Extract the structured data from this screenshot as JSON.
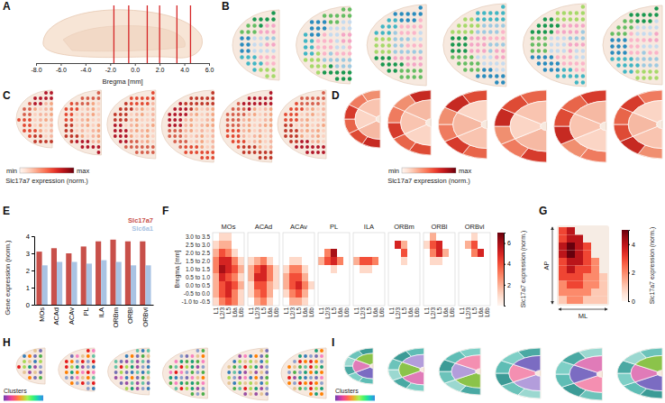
{
  "chart_data": [
    {
      "panel": "A",
      "type": "vlines",
      "xlabel": "Bregma [mm]",
      "xlim": [
        -8,
        6
      ],
      "xticks": [
        {
          "value": -8,
          "label": "-8.0"
        },
        {
          "value": -6,
          "label": "-6.0"
        },
        {
          "value": -4,
          "label": "-4.0"
        },
        {
          "value": -2,
          "label": "-2.0"
        },
        {
          "value": 0,
          "label": "0.0"
        },
        {
          "value": 2,
          "label": "2.0"
        },
        {
          "value": 4,
          "label": "4.0"
        },
        {
          "value": 6,
          "label": "6.0"
        }
      ],
      "x": [
        -1.7,
        -0.5,
        1.0,
        2.0,
        3.4,
        4.5
      ],
      "color": "#d62728"
    },
    {
      "panel": "B",
      "type": "image"
    },
    {
      "panel": "C",
      "type": "image",
      "colorbar": {
        "title": "Slc17a7 expression (norm.)",
        "labels": [
          "min",
          "max"
        ]
      }
    },
    {
      "panel": "D",
      "type": "image",
      "colorbar": {
        "title": "Slc17a7 expression (norm.)",
        "labels": [
          "min",
          "max"
        ]
      }
    },
    {
      "panel": "E",
      "type": "bar",
      "ylabel": "Gene expression (norm.)",
      "categories": [
        "MOs",
        "ACAd",
        "ACAv",
        "PL",
        "ILA",
        "ORBm",
        "ORBl",
        "ORBvl"
      ],
      "series": [
        {
          "name": "Slc17a7",
          "color": "#c8504a",
          "values": [
            3.1,
            3.3,
            3.0,
            3.4,
            3.7,
            3.8,
            3.7,
            3.7
          ]
        },
        {
          "name": "Slc6a1",
          "color": "#a9c3e3",
          "values": [
            2.3,
            2.5,
            2.5,
            2.4,
            2.6,
            2.5,
            2.3,
            2.3
          ]
        }
      ],
      "ylim": [
        0,
        4
      ],
      "yticks": [
        0,
        1,
        2,
        3,
        4
      ],
      "legend": "top-right"
    },
    {
      "panel": "F",
      "type": "heatmap",
      "ylabel": "Bregma [mm]",
      "rows": [
        "3.0 to 3.5",
        "2.5 to 3.0",
        "2.0 to 2.5",
        "1.5 to 2.0",
        "1.0 to 1.5",
        "0.5 to 1.0",
        "0.0 to 0.5",
        "-0.5 to 0.0",
        "-1.0 to -0.5"
      ],
      "columns": [
        "L1",
        "L2/3",
        "L5",
        "L6a",
        "L6b"
      ],
      "panels": [
        {
          "title": "MOs",
          "values": [
            [
              null,
              1,
              1,
              null,
              null
            ],
            [
              1,
              2,
              2,
              null,
              null
            ],
            [
              2,
              4,
              3,
              1,
              null
            ],
            [
              3,
              5,
              5,
              3,
              1
            ],
            [
              3,
              6,
              5,
              4,
              2
            ],
            [
              2,
              5,
              4,
              3,
              1
            ],
            [
              2,
              4,
              5,
              4,
              2
            ],
            [
              2,
              4,
              5,
              3,
              1
            ],
            [
              1,
              3,
              4,
              3,
              1
            ]
          ]
        },
        {
          "title": "ACAd",
          "values": [
            [
              null,
              null,
              null,
              null,
              null
            ],
            [
              null,
              null,
              null,
              null,
              null
            ],
            [
              null,
              null,
              null,
              null,
              null
            ],
            [
              1,
              2,
              3,
              1,
              null
            ],
            [
              2,
              4,
              5,
              3,
              1
            ],
            [
              2,
              5,
              5,
              3,
              1
            ],
            [
              1,
              4,
              4,
              2,
              1
            ],
            [
              1,
              3,
              4,
              2,
              null
            ],
            [
              null,
              2,
              3,
              1,
              null
            ]
          ]
        },
        {
          "title": "ACAv",
          "values": [
            [
              null,
              null,
              null,
              null,
              null
            ],
            [
              null,
              null,
              null,
              null,
              null
            ],
            [
              null,
              null,
              null,
              null,
              null
            ],
            [
              null,
              1,
              1,
              null,
              null
            ],
            [
              1,
              3,
              3,
              1,
              null
            ],
            [
              2,
              4,
              4,
              2,
              null
            ],
            [
              2,
              4,
              5,
              3,
              1
            ],
            [
              1,
              3,
              4,
              2,
              null
            ],
            [
              null,
              2,
              2,
              1,
              null
            ]
          ]
        },
        {
          "title": "PL",
          "values": [
            [
              null,
              null,
              null,
              null,
              null
            ],
            [
              null,
              null,
              null,
              null,
              null
            ],
            [
              null,
              3,
              6,
              null,
              null
            ],
            [
              2,
              4,
              5,
              3,
              null
            ],
            [
              null,
              null,
              1,
              null,
              null
            ],
            [
              null,
              null,
              null,
              null,
              null
            ],
            [
              null,
              null,
              null,
              null,
              null
            ],
            [
              null,
              null,
              null,
              null,
              null
            ],
            [
              null,
              null,
              null,
              null,
              null
            ]
          ]
        },
        {
          "title": "ILA",
          "values": [
            [
              null,
              null,
              null,
              null,
              null
            ],
            [
              null,
              null,
              null,
              null,
              null
            ],
            [
              null,
              null,
              null,
              null,
              null
            ],
            [
              2,
              4,
              4,
              3,
              null
            ],
            [
              null,
              1,
              1,
              null,
              null
            ],
            [
              null,
              null,
              null,
              null,
              null
            ],
            [
              null,
              null,
              null,
              null,
              null
            ],
            [
              null,
              null,
              null,
              null,
              null
            ],
            [
              null,
              null,
              null,
              null,
              null
            ]
          ]
        },
        {
          "title": "ORBm",
          "values": [
            [
              null,
              null,
              null,
              null,
              null
            ],
            [
              null,
              5,
              2,
              null,
              null
            ],
            [
              null,
              null,
              4,
              null,
              null
            ],
            [
              null,
              null,
              1,
              null,
              null
            ],
            [
              null,
              null,
              null,
              null,
              null
            ],
            [
              null,
              null,
              null,
              null,
              null
            ],
            [
              null,
              null,
              null,
              null,
              null
            ],
            [
              null,
              null,
              null,
              null,
              null
            ],
            [
              null,
              null,
              null,
              null,
              null
            ]
          ]
        },
        {
          "title": "ORBl",
          "values": [
            [
              null,
              2,
              null,
              null,
              null
            ],
            [
              1,
              4,
              5,
              null,
              null
            ],
            [
              null,
              3,
              5,
              2,
              null
            ],
            [
              null,
              1,
              1,
              null,
              null
            ],
            [
              null,
              null,
              null,
              null,
              null
            ],
            [
              null,
              null,
              null,
              null,
              null
            ],
            [
              null,
              null,
              null,
              null,
              null
            ],
            [
              null,
              null,
              null,
              null,
              null
            ],
            [
              null,
              null,
              null,
              null,
              null
            ]
          ]
        },
        {
          "title": "ORBvl",
          "values": [
            [
              null,
              null,
              1,
              null,
              null
            ],
            [
              null,
              2,
              4,
              null,
              null
            ],
            [
              null,
              null,
              3,
              5,
              null
            ],
            [
              null,
              null,
              null,
              null,
              null
            ],
            [
              null,
              null,
              null,
              null,
              null
            ],
            [
              null,
              null,
              null,
              null,
              null
            ],
            [
              null,
              null,
              null,
              null,
              null
            ],
            [
              null,
              null,
              null,
              null,
              null
            ],
            [
              null,
              null,
              null,
              null,
              null
            ]
          ]
        }
      ],
      "colorbar": {
        "title": "Slc17a7 expression (norm.)",
        "lim": [
          0,
          7
        ],
        "ticks": [
          2,
          4,
          6
        ]
      }
    },
    {
      "panel": "G",
      "type": "heatmap",
      "xlabel": "ML",
      "ylabel": "AP",
      "values": [
        [
          3,
          4,
          null,
          null,
          null,
          null
        ],
        [
          3,
          4,
          4,
          null,
          null,
          null
        ],
        [
          4,
          5,
          4,
          3,
          null,
          null
        ],
        [
          4,
          5,
          4,
          3,
          null,
          null
        ],
        [
          3,
          4,
          4,
          3,
          2,
          null
        ],
        [
          3,
          4,
          3,
          3,
          2,
          null
        ],
        [
          3,
          3,
          3,
          2,
          2,
          1
        ],
        [
          2,
          3,
          3,
          2,
          2,
          1
        ],
        [
          2,
          2,
          2,
          2,
          1,
          1
        ],
        [
          1,
          2,
          2,
          1,
          1,
          1
        ]
      ],
      "colorbar": {
        "title": "Slc17a7 expression (norm.)",
        "lim": [
          0,
          5
        ],
        "ticks": [
          0,
          2,
          4
        ]
      }
    },
    {
      "panel": "H",
      "type": "image",
      "colorbar": {
        "title": "Clusters"
      }
    },
    {
      "panel": "I",
      "type": "image",
      "colorbar": {
        "title": "Clusters"
      }
    }
  ]
}
